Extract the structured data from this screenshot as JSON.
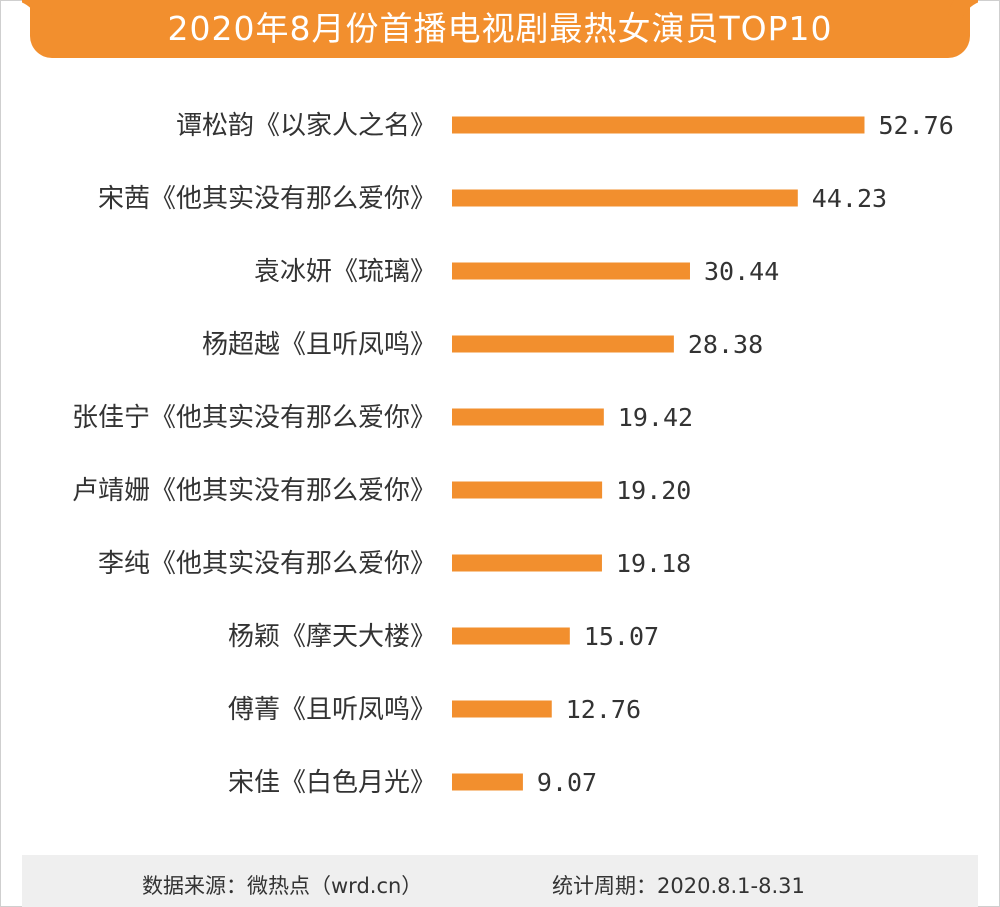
{
  "title": "2020年8月份首播电视剧最热女演员TOP10",
  "footer": {
    "source": "数据来源：微热点（wrd.cn）",
    "period": "统计周期：2020.8.1-8.31"
  },
  "colors": {
    "accent": "#f28f2e",
    "text": "#333333"
  },
  "chart_data": {
    "type": "bar",
    "orientation": "horizontal",
    "title": "2020年8月份首播电视剧最热女演员TOP10",
    "categories": [
      "谭松韵《以家人之名》",
      "宋茜《他其实没有那么爱你》",
      "袁冰妍《琉璃》",
      "杨超越《且听凤鸣》",
      "张佳宁《他其实没有那么爱你》",
      "卢靖姗《他其实没有那么爱你》",
      "李纯《他其实没有那么爱你》",
      "杨颖《摩天大楼》",
      "傅菁《且听凤鸣》",
      "宋佳《白色月光》"
    ],
    "values": [
      52.76,
      44.23,
      30.44,
      28.38,
      19.42,
      19.2,
      19.18,
      15.07,
      12.76,
      9.07
    ],
    "value_labels": [
      "52.76",
      "44.23",
      "30.44",
      "28.38",
      "19.42",
      "19.20",
      "19.18",
      "15.07",
      "12.76",
      "9.07"
    ],
    "xlim": [
      0,
      55
    ],
    "grid": false,
    "legend": "none",
    "color": "#f28f2e"
  }
}
